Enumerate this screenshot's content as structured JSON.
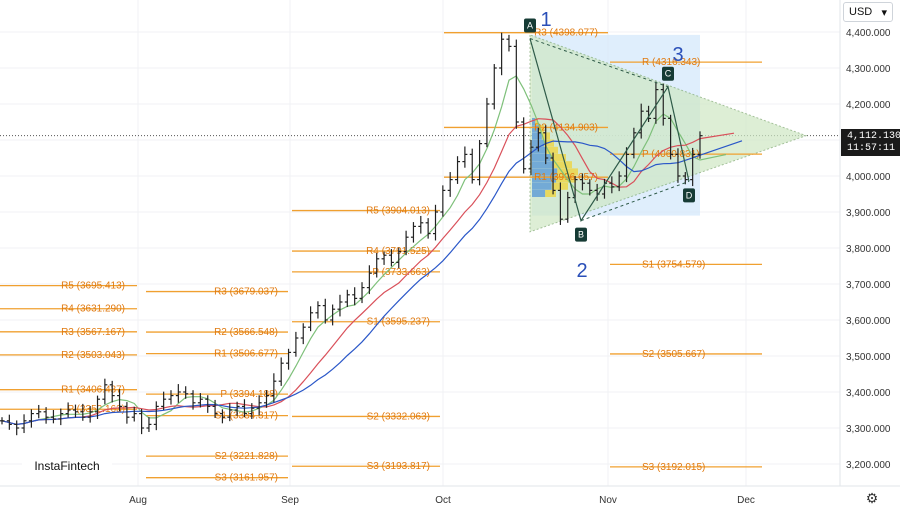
{
  "currency_selector": {
    "label": "USD",
    "icon": "chevron-down-icon"
  },
  "last_price": {
    "value": "4,112.130",
    "countdown": "11:57:11"
  },
  "logo_text": "InstaFintech",
  "settings_icon": "gear-icon",
  "colors": {
    "pivot": "#f0a030",
    "pivot_text": "#e07a10",
    "bars": "#222222",
    "ma_green": "#7ec07a",
    "ma_red": "#d9505a",
    "ma_blue": "#2a57c8",
    "triangle_fill": "#cfe8c4",
    "box_fill": "#d4e8fb",
    "profile_blue": "#5b9ad6",
    "profile_yellow": "#ecd64a",
    "wave_text": "#2a4fb8",
    "marker_bg": "#163b35"
  },
  "chart_data": {
    "type": "candlestick",
    "y_axis": {
      "ticks": [
        "3,200.000",
        "3,300.000",
        "3,400.000",
        "3,500.000",
        "3,600.000",
        "3,700.000",
        "3,800.000",
        "3,900.000",
        "4,000.000",
        "4,100.000",
        "4,200.000",
        "4,300.000",
        "4,400.000"
      ],
      "range": [
        3135,
        4490
      ],
      "side": "right"
    },
    "x_axis": {
      "ticks": [
        "Aug",
        "Sep",
        "Oct",
        "Nov",
        "Dec"
      ]
    },
    "last_price": 4112.13,
    "pivot_levels": [
      {
        "label": "R5 (3695.413)",
        "value": 3695.413,
        "period": "Jul"
      },
      {
        "label": "R4 (3631.290)",
        "value": 3631.29,
        "period": "Jul"
      },
      {
        "label": "R3 (3567.167)",
        "value": 3567.167,
        "period": "Jul"
      },
      {
        "label": "R2 (3503.043)",
        "value": 3503.043,
        "period": "Jul"
      },
      {
        "label": "R1 (3406.437)",
        "value": 3406.437,
        "period": "Jul"
      },
      {
        "label": "P (3352.163)",
        "value": 3352.163,
        "period": "Jul"
      },
      {
        "label": "R3 (3679.037)",
        "value": 3679.037,
        "period": "Aug"
      },
      {
        "label": "R2 (3566.548)",
        "value": 3566.548,
        "period": "Aug"
      },
      {
        "label": "R1 (3506.677)",
        "value": 3506.677,
        "period": "Aug"
      },
      {
        "label": "P (3394.188)",
        "value": 3394.188,
        "period": "Aug"
      },
      {
        "label": "S1 (3334.317)",
        "value": 3334.317,
        "period": "Aug"
      },
      {
        "label": "S2 (3221.828)",
        "value": 3221.828,
        "period": "Aug"
      },
      {
        "label": "S3 (3161.957)",
        "value": 3161.957,
        "period": "Aug"
      },
      {
        "label": "R5 (3904.013)",
        "value": 3904.013,
        "period": "Sep"
      },
      {
        "label": "R4 (3791.525)",
        "value": 3791.525,
        "period": "Sep"
      },
      {
        "label": "P (3733.663)",
        "value": 3733.663,
        "period": "Sep"
      },
      {
        "label": "S1 (3595.237)",
        "value": 3595.237,
        "period": "Sep"
      },
      {
        "label": "S2 (3332.063)",
        "value": 3332.063,
        "period": "Sep"
      },
      {
        "label": "S3 (3193.817)",
        "value": 3193.817,
        "period": "Sep"
      },
      {
        "label": "R3 (4398.077)",
        "value": 4398.077,
        "period": "Oct"
      },
      {
        "label": "R2 (4134.903)",
        "value": 4134.903,
        "period": "Oct"
      },
      {
        "label": "R1 (3996.657)",
        "value": 3996.657,
        "period": "Oct"
      },
      {
        "label": "R (4316.343)",
        "value": 4316.343,
        "period": "Nov"
      },
      {
        "label": "P (4060.831)",
        "value": 4060.831,
        "period": "Nov"
      },
      {
        "label": "S1 (3754.579)",
        "value": 3754.579,
        "period": "Nov"
      },
      {
        "label": "S2 (3505.667)",
        "value": 3505.667,
        "period": "Nov"
      },
      {
        "label": "S3 (3192.015)",
        "value": 3192.015,
        "period": "Nov"
      }
    ],
    "pattern_points": [
      {
        "label": "A",
        "date": "Oct 17",
        "value": 4382
      },
      {
        "label": "B",
        "date": "Oct 27",
        "value": 3876
      },
      {
        "label": "C",
        "date": "Nov 11",
        "value": 4248
      },
      {
        "label": "D",
        "date": "Nov 19",
        "value": 3985
      }
    ],
    "wave_labels": [
      "1",
      "2",
      "3"
    ],
    "series": [
      {
        "values": [
          3320,
          3310,
          3300,
          3320,
          3340,
          3345,
          3330,
          3325,
          3340,
          3350,
          3345,
          3330,
          3345,
          3380,
          3420,
          3390,
          3360,
          3330,
          3340,
          3300,
          3310,
          3360,
          3380,
          3390,
          3400,
          3395,
          3370,
          3380,
          3360,
          3340,
          3330,
          3350,
          3360,
          3340,
          3355,
          3370,
          3390,
          3430,
          3480,
          3510,
          3550,
          3580,
          3620,
          3640,
          3600,
          3630,
          3650,
          3670,
          3660,
          3690,
          3730,
          3770,
          3780,
          3760,
          3790,
          3830,
          3860,
          3870,
          3840,
          3900,
          3960,
          3990,
          4040,
          4060,
          3990,
          4090,
          4200,
          4300,
          4380,
          4360,
          4150,
          4020,
          4080,
          4120,
          4050,
          3960,
          3880,
          3940,
          3990,
          3980,
          3960,
          3950,
          3980,
          3970,
          4000,
          4060,
          4120,
          4180,
          4160,
          4240,
          4160,
          4060,
          4000,
          3990,
          4060,
          4112
        ]
      }
    ]
  }
}
